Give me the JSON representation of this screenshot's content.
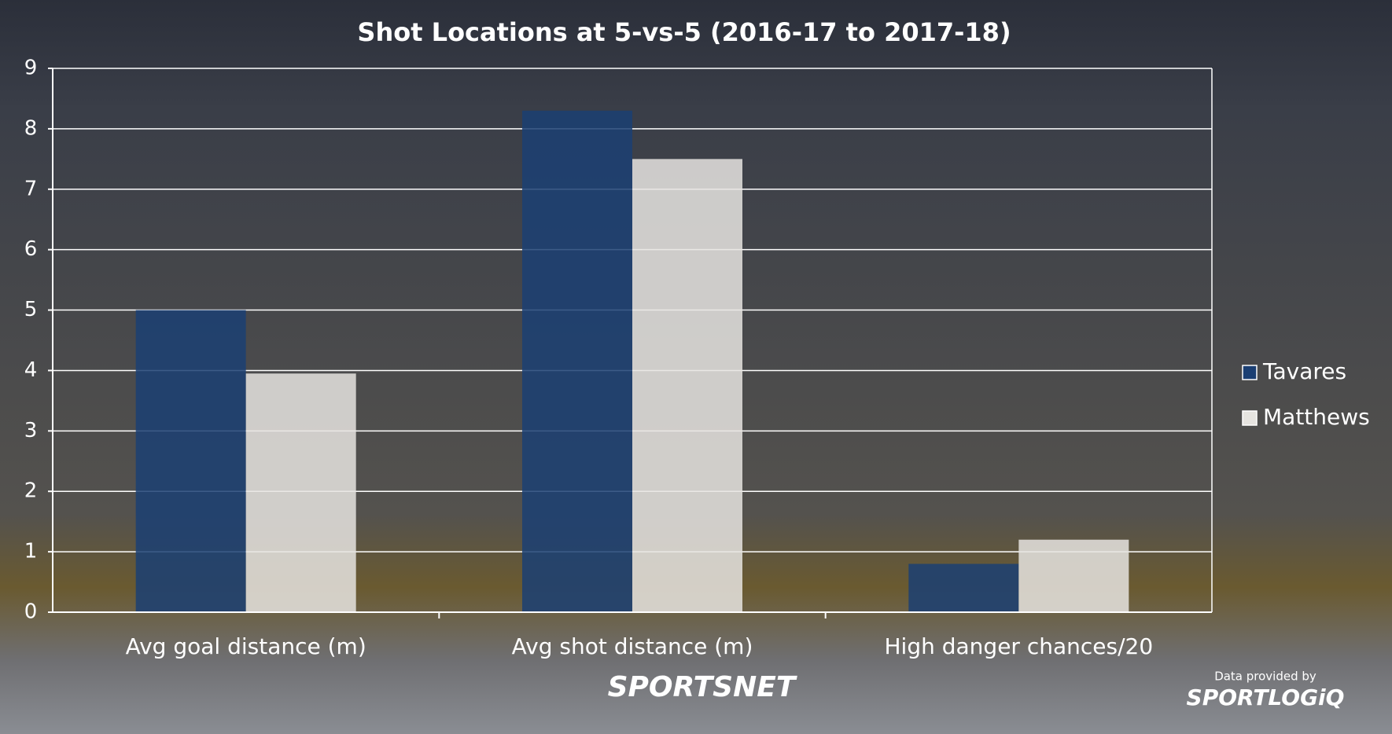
{
  "chart_data": {
    "type": "bar",
    "title": "Shot Locations at 5-vs-5 (2016-17 to 2017-18)",
    "categories": [
      "Avg goal distance (m)",
      "Avg shot distance (m)",
      "High danger chances/20"
    ],
    "series": [
      {
        "name": "Tavares",
        "color": "#1b3f73",
        "values": [
          5.0,
          8.3,
          0.8
        ]
      },
      {
        "name": "Matthews",
        "color": "#e6e4e0",
        "values": [
          3.95,
          7.5,
          1.2
        ]
      }
    ],
    "ylim": [
      0,
      9
    ],
    "yticks": [
      0,
      1,
      2,
      3,
      4,
      5,
      6,
      7,
      8,
      9
    ],
    "grid": true,
    "legend": "right"
  },
  "footer": {
    "brand": "SPORTSNET",
    "credit": "Data provided by",
    "provider": "SPORTLOGiQ"
  }
}
